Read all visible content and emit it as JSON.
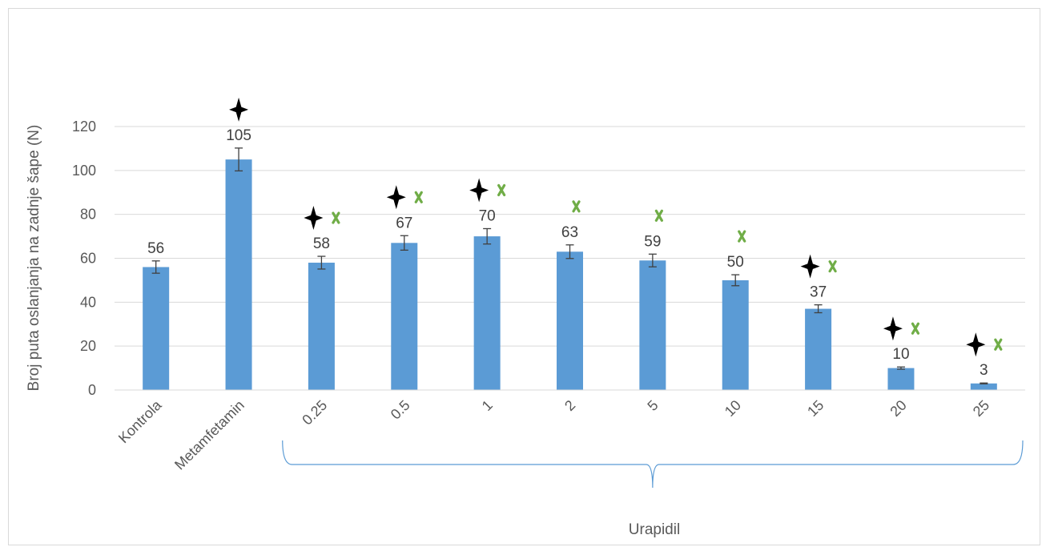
{
  "chart_data": {
    "type": "bar",
    "categories": [
      "Kontrola",
      "Metamfetamin",
      "0.25",
      "0.5",
      "1",
      "2",
      "5",
      "10",
      "15",
      "20",
      "25"
    ],
    "values": [
      56,
      105,
      58,
      67,
      70,
      63,
      59,
      50,
      37,
      10,
      3
    ],
    "errors": [
      2.8,
      5.2,
      2.9,
      3.3,
      3.5,
      3.1,
      2.9,
      2.5,
      1.8,
      0.5,
      0.2
    ],
    "data_labels": [
      "56",
      "105",
      "58",
      "67",
      "70",
      "63",
      "59",
      "50",
      "37",
      "10",
      "3"
    ],
    "ylabel": "Broj puta oslanjanja na zadnje šape (N)",
    "yticks": [
      "0",
      "20",
      "40",
      "60",
      "80",
      "100",
      "120"
    ],
    "ylim": [
      0,
      120
    ],
    "grid": true,
    "group_label": "Urapidil",
    "group_start_index": 2,
    "group_end_index": 10,
    "markers_star": [
      false,
      true,
      true,
      true,
      true,
      false,
      false,
      false,
      true,
      true,
      true
    ],
    "markers_x": [
      false,
      false,
      true,
      true,
      true,
      true,
      true,
      true,
      true,
      true,
      true
    ],
    "colors": {
      "bar": "#5b9bd5",
      "star": "#000000",
      "x_marker": "#70ad47",
      "grid": "#d9d9d9",
      "bracket": "#5b9bd5",
      "error_bar": "#404040"
    }
  }
}
